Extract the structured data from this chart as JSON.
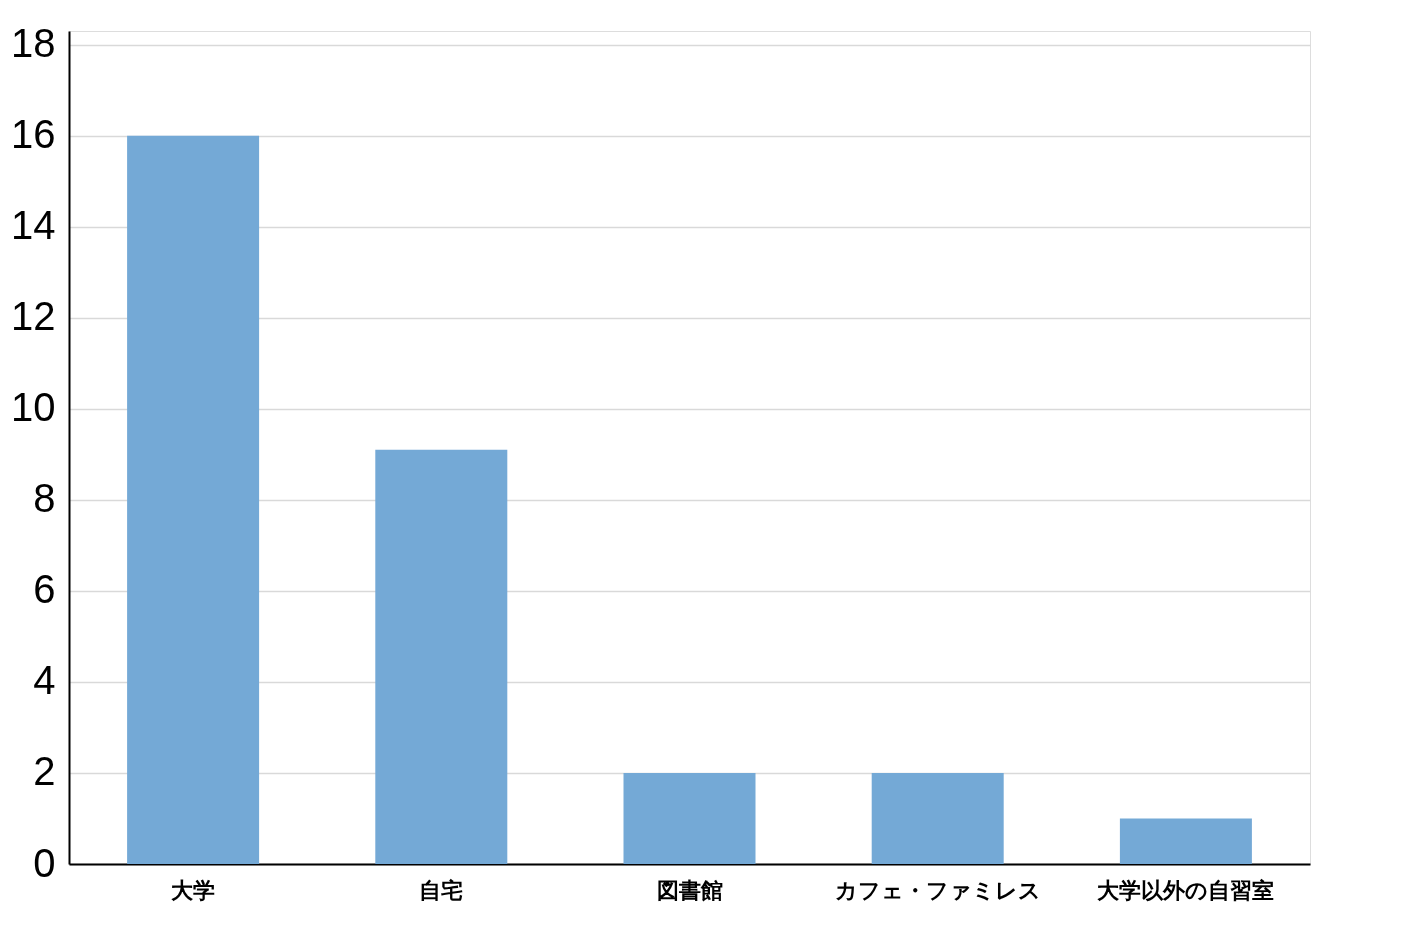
{
  "chart_data": {
    "type": "bar",
    "categories": [
      "大学",
      "自宅",
      "図書館",
      "カフェ・ファミレス",
      "大学以外の自習室"
    ],
    "values": [
      16,
      9.1,
      2,
      2,
      1
    ],
    "color": "#74a9d6",
    "ylim": [
      0,
      18.3
    ],
    "yticks": [
      0,
      2,
      4,
      6,
      8,
      10,
      12,
      14,
      16,
      18
    ],
    "grid": "y"
  }
}
